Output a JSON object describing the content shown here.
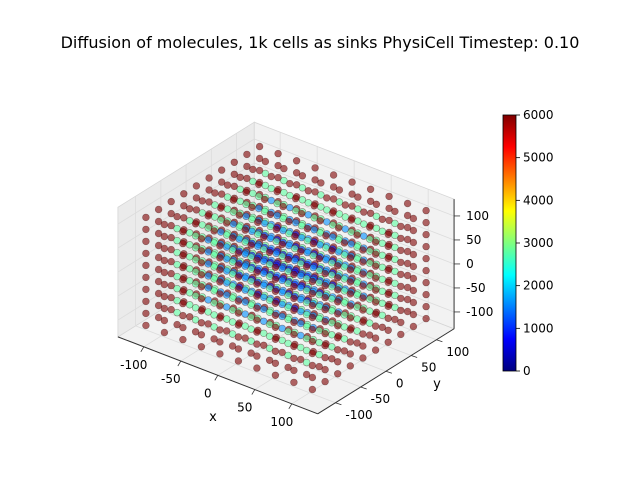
{
  "chart_data": {
    "type": "scatter",
    "title": "Diffusion of molecules, 1k cells as sinks PhysiCell Timestep: 0.10",
    "subtitle": "",
    "xlabel": "x",
    "ylabel": "y",
    "zlabel": "",
    "xlim": [
      -135,
      135
    ],
    "ylim": [
      -135,
      135
    ],
    "zlim": [
      -135,
      135
    ],
    "x_ticks": [
      "-100",
      "-50",
      "0",
      "50",
      "100"
    ],
    "y_ticks": [
      "-100",
      "-50",
      "0",
      "50",
      "100"
    ],
    "z_ticks": [
      "-100",
      "-50",
      "0",
      "50",
      "100"
    ],
    "grid": true,
    "colormap": "jet",
    "point_alpha": 0.6,
    "grid_points": {
      "axis_values": [
        -112.5,
        -87.5,
        -62.5,
        -37.5,
        -12.5,
        12.5,
        37.5,
        62.5,
        87.5,
        112.5
      ],
      "count_per_axis": 10,
      "value_by_shell_from_outside": [
        6000,
        2800,
        1600,
        900,
        500
      ]
    },
    "colorbar": {
      "min": 0,
      "max": 6000,
      "ticks": [
        "0",
        "1000",
        "2000",
        "3000",
        "4000",
        "5000",
        "6000"
      ],
      "colors": [
        "#00007f",
        "#0000ff",
        "#007fff",
        "#00ffff",
        "#7fff7f",
        "#ffff00",
        "#ff7f00",
        "#ff0000",
        "#7f0000"
      ]
    }
  }
}
